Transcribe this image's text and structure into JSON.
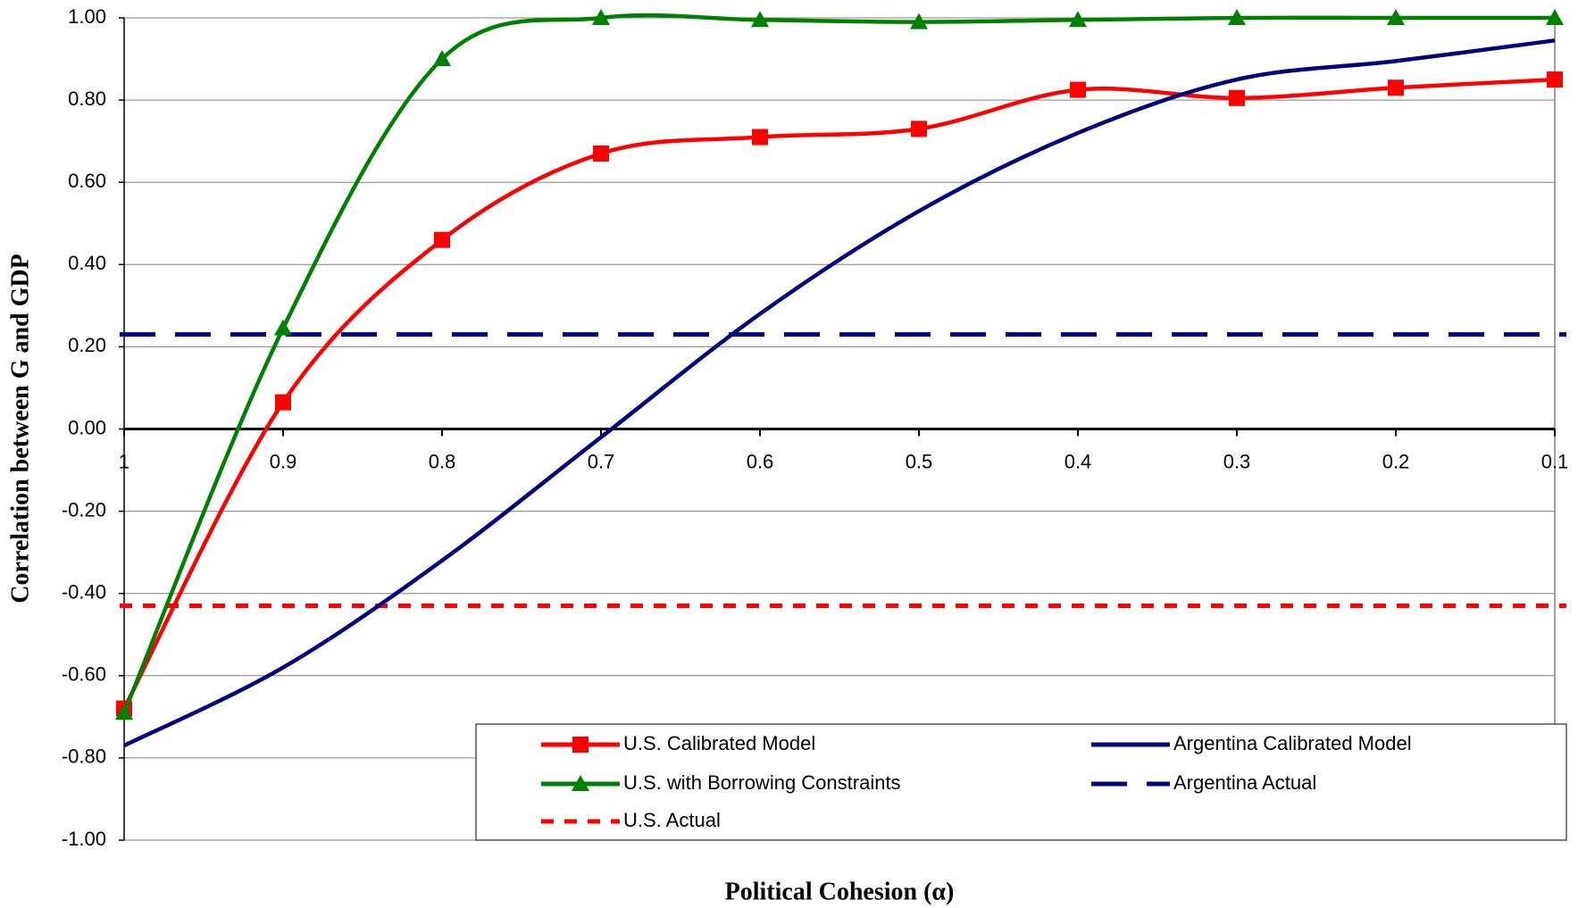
{
  "chart_data": {
    "type": "line",
    "x_label": "Political Cohesion (α)",
    "y_label": "Correlation between G and GDP",
    "categories": [
      "1",
      "0.9",
      "0.8",
      "0.7",
      "0.6",
      "0.5",
      "0.4",
      "0.3",
      "0.2",
      "0.1"
    ],
    "ylim": [
      -1,
      1
    ],
    "yticks": [
      {
        "value": -1,
        "label": "-1.00"
      },
      {
        "value": -0.8,
        "label": "-0.80"
      },
      {
        "value": -0.6,
        "label": "-0.60"
      },
      {
        "value": -0.4,
        "label": "-0.40"
      },
      {
        "value": -0.2,
        "label": "-0.20"
      },
      {
        "value": 0,
        "label": "0.00"
      },
      {
        "value": 0.2,
        "label": "0.20"
      },
      {
        "value": 0.4,
        "label": "0.40"
      },
      {
        "value": 0.6,
        "label": "0.60"
      },
      {
        "value": 0.8,
        "label": "0.80"
      },
      {
        "value": 1,
        "label": "1.00"
      }
    ],
    "grid": true,
    "series": [
      {
        "name": "U.S. Calibrated Model",
        "color": "#ff0000",
        "marker": "square",
        "values": [
          -0.68,
          0.065,
          0.46,
          0.67,
          0.71,
          0.73,
          0.825,
          0.805,
          0.83,
          0.85
        ]
      },
      {
        "name": "U.S. with Borrowing Constraints",
        "color": "#008000",
        "marker": "triangle",
        "values": [
          -0.69,
          0.245,
          0.9,
          1.0,
          0.995,
          0.99,
          0.995,
          1.0,
          1.0,
          1.0
        ]
      },
      {
        "name": "Argentina Calibrated Model",
        "color": "#000080",
        "marker": "none",
        "values": [
          -0.77,
          -0.58,
          -0.32,
          -0.02,
          0.28,
          0.53,
          0.72,
          0.85,
          0.895,
          0.945
        ]
      }
    ],
    "reference_lines": [
      {
        "name": "Argentina Actual",
        "color": "#000080",
        "style": "dashed",
        "value": 0.23
      },
      {
        "name": "U.S. Actual",
        "color": "#ff0000",
        "style": "dotted",
        "value": -0.43
      }
    ]
  }
}
